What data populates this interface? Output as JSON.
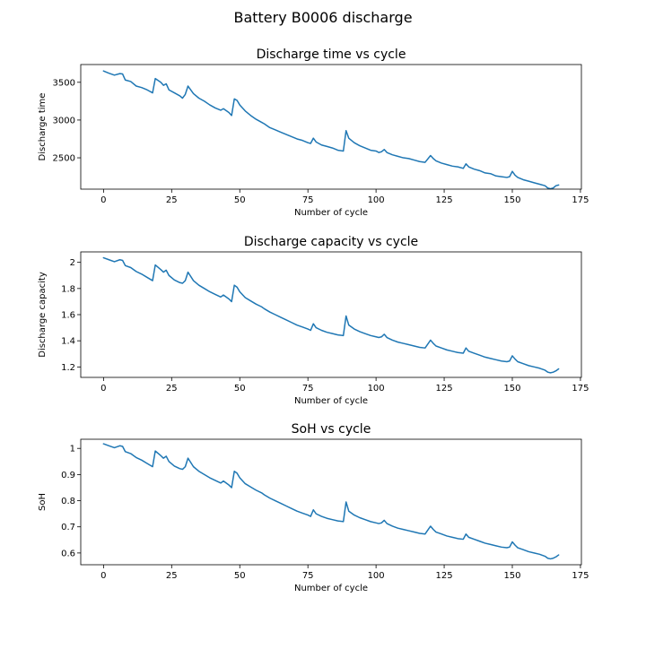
{
  "figure": {
    "title": "Battery B0006 discharge"
  },
  "colors": {
    "series": "#1f77b4"
  },
  "chart_data": [
    {
      "type": "line",
      "title": "Discharge time vs cycle",
      "xlabel": "Number of cycle",
      "ylabel": "Discharge time",
      "xlim": [
        -8.35,
        175.35
      ],
      "ylim": [
        2085,
        3735
      ],
      "xticks": [
        0,
        25,
        50,
        75,
        100,
        125,
        150,
        175
      ],
      "yticks": [
        2500,
        3000,
        3500
      ],
      "grid": false,
      "x": [
        0,
        2,
        4,
        6,
        7,
        8,
        10,
        12,
        14,
        16,
        18,
        19,
        21,
        22,
        23,
        24,
        26,
        28,
        29,
        30,
        31,
        33,
        35,
        37,
        39,
        41,
        43,
        44,
        46,
        47,
        48,
        49,
        50,
        52,
        54,
        56,
        58,
        59,
        61,
        63,
        65,
        67,
        69,
        71,
        73,
        75,
        76,
        77,
        78,
        80,
        82,
        84,
        86,
        88,
        89,
        90,
        92,
        94,
        96,
        98,
        100,
        101,
        102,
        103,
        104,
        106,
        108,
        110,
        112,
        114,
        116,
        118,
        120,
        121,
        122,
        124,
        126,
        128,
        130,
        132,
        133,
        134,
        136,
        138,
        140,
        142,
        144,
        146,
        148,
        149,
        150,
        151,
        152,
        154,
        156,
        158,
        160,
        162,
        163,
        164,
        165,
        166,
        167
      ],
      "values": [
        3650,
        3620,
        3595,
        3615,
        3610,
        3530,
        3510,
        3450,
        3430,
        3400,
        3360,
        3550,
        3500,
        3460,
        3480,
        3400,
        3360,
        3320,
        3290,
        3340,
        3450,
        3350,
        3290,
        3250,
        3200,
        3160,
        3130,
        3150,
        3100,
        3060,
        3280,
        3260,
        3200,
        3120,
        3060,
        3010,
        2970,
        2950,
        2900,
        2870,
        2840,
        2810,
        2780,
        2750,
        2730,
        2700,
        2690,
        2760,
        2710,
        2670,
        2650,
        2630,
        2600,
        2590,
        2860,
        2760,
        2700,
        2660,
        2630,
        2600,
        2590,
        2570,
        2580,
        2610,
        2570,
        2540,
        2520,
        2500,
        2490,
        2470,
        2450,
        2440,
        2530,
        2490,
        2460,
        2430,
        2410,
        2390,
        2380,
        2360,
        2420,
        2380,
        2350,
        2330,
        2300,
        2290,
        2260,
        2250,
        2240,
        2250,
        2320,
        2270,
        2240,
        2210,
        2190,
        2170,
        2150,
        2130,
        2100,
        2090,
        2100,
        2130,
        2140
      ]
    },
    {
      "type": "line",
      "title": "Discharge capacity vs cycle",
      "xlabel": "Number of cycle",
      "ylabel": "Discharge capacity",
      "xlim": [
        -8.35,
        175.35
      ],
      "ylim": [
        1.12,
        2.08
      ],
      "xticks": [
        0,
        25,
        50,
        75,
        100,
        125,
        150,
        175
      ],
      "yticks": [
        1.2,
        1.4,
        1.6,
        1.8,
        2.0
      ],
      "grid": false,
      "x": [
        0,
        2,
        4,
        6,
        7,
        8,
        10,
        12,
        14,
        16,
        18,
        19,
        21,
        22,
        23,
        24,
        26,
        28,
        29,
        30,
        31,
        33,
        35,
        37,
        39,
        41,
        43,
        44,
        46,
        47,
        48,
        49,
        50,
        52,
        54,
        56,
        58,
        59,
        61,
        63,
        65,
        67,
        69,
        71,
        73,
        75,
        76,
        77,
        78,
        80,
        82,
        84,
        86,
        88,
        89,
        90,
        92,
        94,
        96,
        98,
        100,
        101,
        102,
        103,
        104,
        106,
        108,
        110,
        112,
        114,
        116,
        118,
        120,
        121,
        122,
        124,
        126,
        128,
        130,
        132,
        133,
        134,
        136,
        138,
        140,
        142,
        144,
        146,
        148,
        149,
        150,
        151,
        152,
        154,
        156,
        158,
        160,
        162,
        163,
        164,
        165,
        166,
        167
      ],
      "values": [
        2.035,
        2.02,
        2.005,
        2.02,
        2.015,
        1.975,
        1.96,
        1.93,
        1.91,
        1.885,
        1.86,
        1.98,
        1.945,
        1.925,
        1.94,
        1.9,
        1.865,
        1.845,
        1.84,
        1.86,
        1.925,
        1.86,
        1.825,
        1.8,
        1.775,
        1.755,
        1.735,
        1.75,
        1.72,
        1.7,
        1.825,
        1.81,
        1.775,
        1.73,
        1.705,
        1.68,
        1.66,
        1.645,
        1.62,
        1.6,
        1.58,
        1.56,
        1.54,
        1.52,
        1.505,
        1.49,
        1.48,
        1.53,
        1.5,
        1.48,
        1.465,
        1.455,
        1.445,
        1.44,
        1.59,
        1.52,
        1.49,
        1.47,
        1.455,
        1.44,
        1.43,
        1.425,
        1.43,
        1.45,
        1.425,
        1.405,
        1.39,
        1.38,
        1.37,
        1.36,
        1.35,
        1.345,
        1.405,
        1.38,
        1.36,
        1.345,
        1.33,
        1.32,
        1.31,
        1.305,
        1.345,
        1.32,
        1.305,
        1.29,
        1.275,
        1.265,
        1.255,
        1.245,
        1.24,
        1.245,
        1.285,
        1.26,
        1.24,
        1.225,
        1.21,
        1.2,
        1.19,
        1.175,
        1.16,
        1.155,
        1.16,
        1.17,
        1.185
      ]
    },
    {
      "type": "line",
      "title": "SoH vs cycle",
      "xlabel": "Number of cycle",
      "ylabel": "SoH",
      "xlim": [
        -8.35,
        175.35
      ],
      "ylim": [
        0.555,
        1.035
      ],
      "xticks": [
        0,
        25,
        50,
        75,
        100,
        125,
        150,
        175
      ],
      "yticks": [
        0.6,
        0.7,
        0.8,
        0.9,
        1.0
      ],
      "grid": false,
      "x": [
        0,
        2,
        4,
        6,
        7,
        8,
        10,
        12,
        14,
        16,
        18,
        19,
        21,
        22,
        23,
        24,
        26,
        28,
        29,
        30,
        31,
        33,
        35,
        37,
        39,
        41,
        43,
        44,
        46,
        47,
        48,
        49,
        50,
        52,
        54,
        56,
        58,
        59,
        61,
        63,
        65,
        67,
        69,
        71,
        73,
        75,
        76,
        77,
        78,
        80,
        82,
        84,
        86,
        88,
        89,
        90,
        92,
        94,
        96,
        98,
        100,
        101,
        102,
        103,
        104,
        106,
        108,
        110,
        112,
        114,
        116,
        118,
        120,
        121,
        122,
        124,
        126,
        128,
        130,
        132,
        133,
        134,
        136,
        138,
        140,
        142,
        144,
        146,
        148,
        149,
        150,
        151,
        152,
        154,
        156,
        158,
        160,
        162,
        163,
        164,
        165,
        166,
        167
      ],
      "values": [
        1.0175,
        1.01,
        1.0025,
        1.01,
        1.0075,
        0.9875,
        0.98,
        0.965,
        0.955,
        0.9425,
        0.93,
        0.99,
        0.9725,
        0.9625,
        0.97,
        0.95,
        0.9325,
        0.9225,
        0.92,
        0.93,
        0.9625,
        0.93,
        0.9125,
        0.9,
        0.8875,
        0.8775,
        0.8675,
        0.875,
        0.86,
        0.85,
        0.9125,
        0.905,
        0.8875,
        0.865,
        0.8525,
        0.84,
        0.83,
        0.8225,
        0.81,
        0.8,
        0.79,
        0.78,
        0.77,
        0.76,
        0.7525,
        0.745,
        0.74,
        0.765,
        0.75,
        0.74,
        0.7325,
        0.7275,
        0.7225,
        0.72,
        0.795,
        0.76,
        0.745,
        0.735,
        0.7275,
        0.72,
        0.715,
        0.7125,
        0.715,
        0.725,
        0.7125,
        0.7025,
        0.695,
        0.69,
        0.685,
        0.68,
        0.675,
        0.6725,
        0.7025,
        0.69,
        0.68,
        0.6725,
        0.665,
        0.66,
        0.655,
        0.6525,
        0.6725,
        0.66,
        0.6525,
        0.645,
        0.6375,
        0.6325,
        0.6275,
        0.6225,
        0.62,
        0.6225,
        0.6425,
        0.63,
        0.62,
        0.6125,
        0.605,
        0.6,
        0.595,
        0.5875,
        0.58,
        0.5775,
        0.58,
        0.585,
        0.5925
      ]
    }
  ]
}
